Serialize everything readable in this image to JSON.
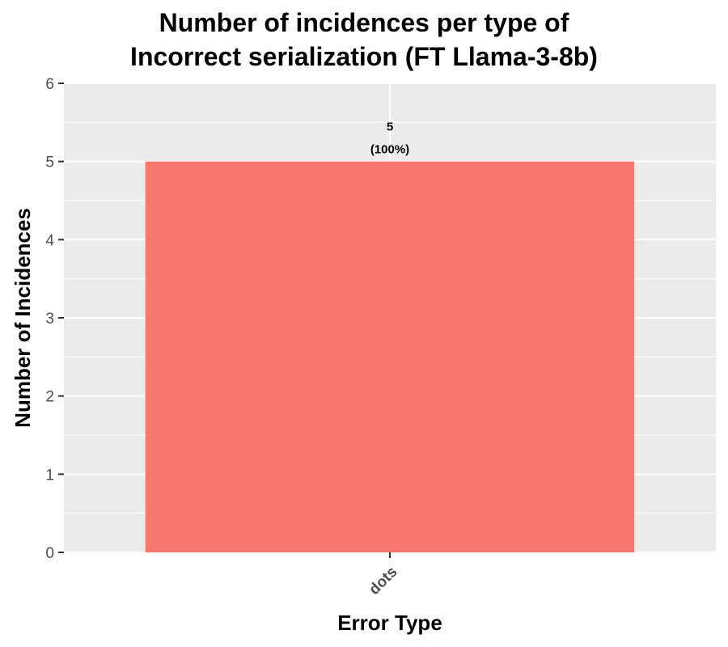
{
  "chart_data": {
    "type": "bar",
    "title_lines": [
      "Number of incidences per type of",
      "Incorrect serialization (FT Llama-3-8b)"
    ],
    "xlabel": "Error Type",
    "ylabel": "Number of Incidences",
    "categories": [
      "dots"
    ],
    "values": [
      5
    ],
    "value_labels": [
      "5",
      "(100%)"
    ],
    "ylim": [
      0,
      6
    ],
    "yticks": [
      0,
      1,
      2,
      3,
      4,
      5,
      6
    ],
    "grid": true,
    "legend": "none",
    "colors": {
      "bar": "#F8766D",
      "panel_background": "#EBEBEB",
      "grid": "#FFFFFF",
      "tick_text": "#4D4D4D",
      "axis_title": "#000000"
    }
  }
}
